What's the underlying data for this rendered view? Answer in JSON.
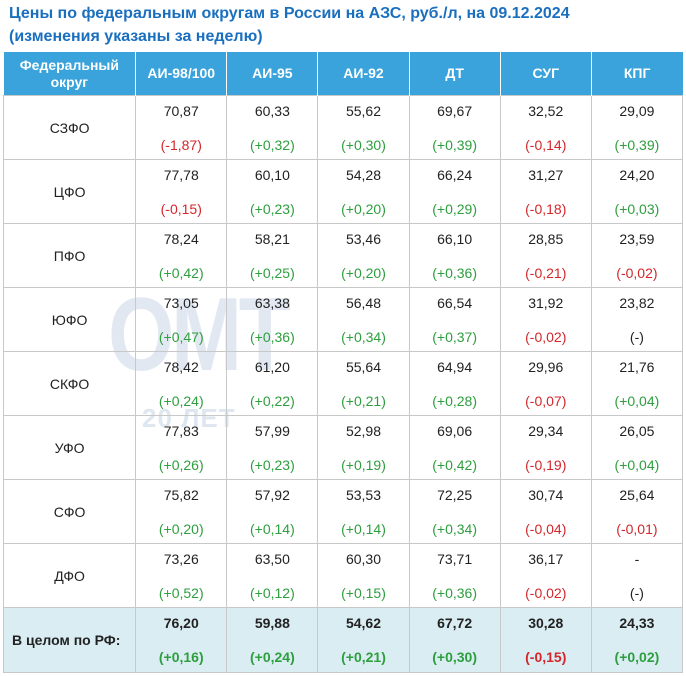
{
  "title": {
    "line1": "Цены по федеральным округам в России на АЗС, руб./л, на 09.12.2024",
    "line2": "(изменения указаны за неделю)"
  },
  "watermark": {
    "main": "ОМТ",
    "sub": "20 ЛЕТ"
  },
  "headers": [
    "Федеральный округ",
    "АИ-98/100",
    "АИ-95",
    "АИ-92",
    "ДТ",
    "СУГ",
    "КПГ"
  ],
  "rows": [
    {
      "region": "СЗФО",
      "cells": [
        {
          "price": "70,87",
          "change": "(-1,87)",
          "dir": "down"
        },
        {
          "price": "60,33",
          "change": "(+0,32)",
          "dir": "up"
        },
        {
          "price": "55,62",
          "change": "(+0,30)",
          "dir": "up"
        },
        {
          "price": "69,67",
          "change": "(+0,39)",
          "dir": "up"
        },
        {
          "price": "32,52",
          "change": "(-0,14)",
          "dir": "down"
        },
        {
          "price": "29,09",
          "change": "(+0,39)",
          "dir": "up"
        }
      ]
    },
    {
      "region": "ЦФО",
      "cells": [
        {
          "price": "77,78",
          "change": "(-0,15)",
          "dir": "down"
        },
        {
          "price": "60,10",
          "change": "(+0,23)",
          "dir": "up"
        },
        {
          "price": "54,28",
          "change": "(+0,20)",
          "dir": "up"
        },
        {
          "price": "66,24",
          "change": "(+0,29)",
          "dir": "up"
        },
        {
          "price": "31,27",
          "change": "(-0,18)",
          "dir": "down"
        },
        {
          "price": "24,20",
          "change": "(+0,03)",
          "dir": "up"
        }
      ]
    },
    {
      "region": "ПФО",
      "cells": [
        {
          "price": "78,24",
          "change": "(+0,42)",
          "dir": "up"
        },
        {
          "price": "58,21",
          "change": "(+0,25)",
          "dir": "up"
        },
        {
          "price": "53,46",
          "change": "(+0,20)",
          "dir": "up"
        },
        {
          "price": "66,10",
          "change": "(+0,36)",
          "dir": "up"
        },
        {
          "price": "28,85",
          "change": "(-0,21)",
          "dir": "down"
        },
        {
          "price": "23,59",
          "change": "(-0,02)",
          "dir": "down"
        }
      ]
    },
    {
      "region": "ЮФО",
      "cells": [
        {
          "price": "73,05",
          "change": "(+0,47)",
          "dir": "up"
        },
        {
          "price": "63,38",
          "change": "(+0,36)",
          "dir": "up"
        },
        {
          "price": "56,48",
          "change": "(+0,34)",
          "dir": "up"
        },
        {
          "price": "66,54",
          "change": "(+0,37)",
          "dir": "up"
        },
        {
          "price": "31,92",
          "change": "(-0,02)",
          "dir": "down"
        },
        {
          "price": "23,82",
          "change": "(-)",
          "dir": "zero"
        }
      ]
    },
    {
      "region": "СКФО",
      "cells": [
        {
          "price": "78,42",
          "change": "(+0,24)",
          "dir": "up"
        },
        {
          "price": "61,20",
          "change": "(+0,22)",
          "dir": "up"
        },
        {
          "price": "55,64",
          "change": "(+0,21)",
          "dir": "up"
        },
        {
          "price": "64,94",
          "change": "(+0,28)",
          "dir": "up"
        },
        {
          "price": "29,96",
          "change": "(-0,07)",
          "dir": "down"
        },
        {
          "price": "21,76",
          "change": "(+0,04)",
          "dir": "up"
        }
      ]
    },
    {
      "region": "УФО",
      "cells": [
        {
          "price": "77,83",
          "change": "(+0,26)",
          "dir": "up"
        },
        {
          "price": "57,99",
          "change": "(+0,23)",
          "dir": "up"
        },
        {
          "price": "52,98",
          "change": "(+0,19)",
          "dir": "up"
        },
        {
          "price": "69,06",
          "change": "(+0,42)",
          "dir": "up"
        },
        {
          "price": "29,34",
          "change": "(-0,19)",
          "dir": "down"
        },
        {
          "price": "26,05",
          "change": "(+0,04)",
          "dir": "up"
        }
      ]
    },
    {
      "region": "СФО",
      "cells": [
        {
          "price": "75,82",
          "change": "(+0,20)",
          "dir": "up"
        },
        {
          "price": "57,92",
          "change": "(+0,14)",
          "dir": "up"
        },
        {
          "price": "53,53",
          "change": "(+0,14)",
          "dir": "up"
        },
        {
          "price": "72,25",
          "change": "(+0,34)",
          "dir": "up"
        },
        {
          "price": "30,74",
          "change": "(-0,04)",
          "dir": "down"
        },
        {
          "price": "25,64",
          "change": "(-0,01)",
          "dir": "down"
        }
      ]
    },
    {
      "region": "ДФО",
      "cells": [
        {
          "price": "73,26",
          "change": "(+0,52)",
          "dir": "up"
        },
        {
          "price": "63,50",
          "change": "(+0,12)",
          "dir": "up"
        },
        {
          "price": "60,30",
          "change": "(+0,15)",
          "dir": "up"
        },
        {
          "price": "73,71",
          "change": "(+0,36)",
          "dir": "up"
        },
        {
          "price": "36,17",
          "change": "(-0,02)",
          "dir": "down"
        },
        {
          "price": "-",
          "change": "(-)",
          "dir": "zero"
        }
      ]
    }
  ],
  "total": {
    "label": "В целом по РФ:",
    "cells": [
      {
        "price": "76,20",
        "change": "(+0,16)",
        "dir": "up"
      },
      {
        "price": "59,88",
        "change": "(+0,24)",
        "dir": "up"
      },
      {
        "price": "54,62",
        "change": "(+0,21)",
        "dir": "up"
      },
      {
        "price": "67,72",
        "change": "(+0,30)",
        "dir": "up"
      },
      {
        "price": "30,28",
        "change": "(-0,15)",
        "dir": "down"
      },
      {
        "price": "24,33",
        "change": "(+0,02)",
        "dir": "up"
      }
    ]
  },
  "colors": {
    "header_bg": "#3aa3db",
    "title": "#1a6fbf",
    "up": "#2e9e3e",
    "down": "#d4262b",
    "total_bg": "#d9edf3"
  }
}
